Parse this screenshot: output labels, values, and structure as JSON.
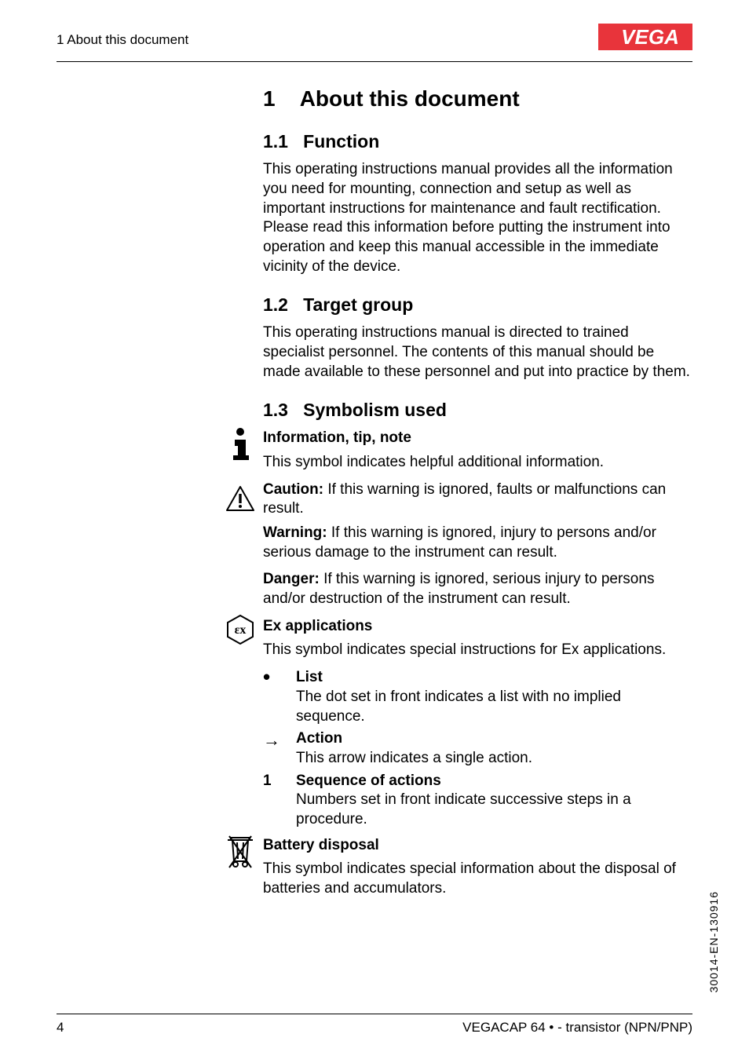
{
  "header": {
    "section_ref": "1 About this document",
    "logo_text": "VEGA",
    "logo_bg": "#e8343b",
    "logo_fg": "#ffffff"
  },
  "heading": {
    "num": "1",
    "title": "About this document"
  },
  "s11": {
    "num": "1.1",
    "title": "Function",
    "body": "This operating instructions manual provides all the information you need for mounting, connection and setup as well as important instructions for maintenance and fault rectification. Please read this information before putting the instrument into operation and keep this manual accessible in the immediate vicinity of the device."
  },
  "s12": {
    "num": "1.2",
    "title": "Target group",
    "body": "This operating instructions manual is directed to trained specialist personnel. The contents of this manual should be made available to these personnel and put into practice by them."
  },
  "s13": {
    "num": "1.3",
    "title": "Symbolism used"
  },
  "info": {
    "heading": "Information, tip, note",
    "body": "This symbol indicates helpful additional information."
  },
  "caution": {
    "label": "Caution:",
    "body": " If this warning is ignored, faults or malfunctions can result."
  },
  "warning": {
    "label": "Warning:",
    "body": " If this warning is ignored, injury to persons and/or serious damage to the instrument can result."
  },
  "danger": {
    "label": "Danger:",
    "body": " If this warning is ignored, serious injury to persons and/or destruction of the instrument can result."
  },
  "ex": {
    "heading": "Ex applications",
    "body": "This symbol indicates special instructions for Ex applications."
  },
  "list_item": {
    "bullet": "•",
    "heading": "List",
    "body": "The dot set in front indicates a list with no implied sequence."
  },
  "action": {
    "bullet": "→",
    "heading": "Action",
    "body": "This arrow indicates a single action."
  },
  "sequence": {
    "bullet": "1",
    "heading": "Sequence of actions",
    "body": "Numbers set in front indicate successive steps in a procedure."
  },
  "battery": {
    "heading": "Battery disposal",
    "body": "This symbol indicates special information about the disposal of batteries and accumulators."
  },
  "footer": {
    "page": "4",
    "product": "VEGACAP 64 • - transistor (NPN/PNP)"
  },
  "side_code": "30014-EN-130916"
}
